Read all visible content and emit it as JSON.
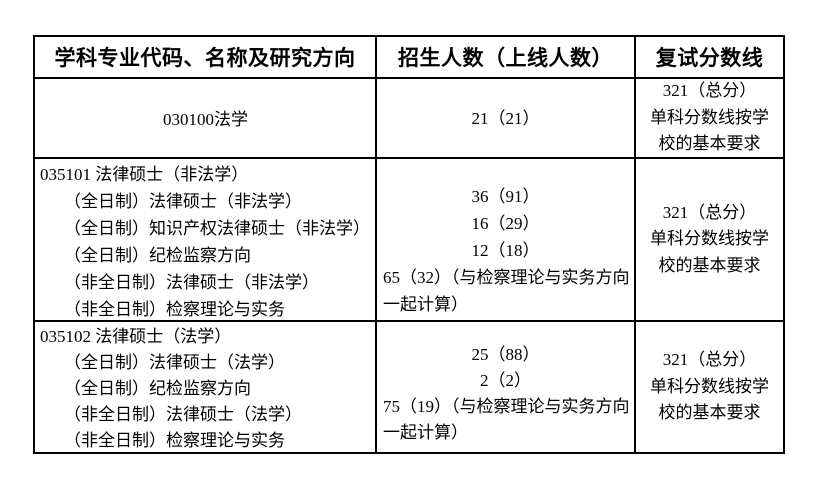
{
  "table": {
    "border_color": "#000000",
    "text_color": "#000000",
    "background_color": "#ffffff",
    "header": {
      "col_program": "学科专业代码、名称及研究方向",
      "col_enrollment": "招生人数（上线人数）",
      "col_score": "复试分数线"
    },
    "rows": [
      {
        "program_title": "030100法学",
        "program_subs": [],
        "enrollment_center": [
          "21（21）"
        ],
        "enrollment_long": "",
        "score_lines": [
          "321（总分）",
          "单科分数线按学",
          "校的基本要求"
        ]
      },
      {
        "program_title": "035101 法律硕士（非法学）",
        "program_subs": [
          "（全日制）法律硕士（非法学）",
          "（全日制）知识产权法律硕士（非法学）",
          "（全日制）纪检监察方向",
          "（非全日制）法律硕士（非法学）",
          "（非全日制）检察理论与实务"
        ],
        "enrollment_center": [
          "36（91）",
          "16（29）",
          "12（18）"
        ],
        "enrollment_long": "65（32）（与检察理论与实务方向一起计算）",
        "score_lines": [
          "321（总分）",
          "单科分数线按学",
          "校的基本要求"
        ]
      },
      {
        "program_title": "035102 法律硕士（法学）",
        "program_subs": [
          "（全日制）法律硕士（法学）",
          "（全日制）纪检监察方向",
          "（非全日制）法律硕士（法学）",
          "（非全日制）检察理论与实务"
        ],
        "enrollment_center": [
          "25（88）",
          "2（2）"
        ],
        "enrollment_long": "75（19）（与检察理论与实务方向一起计算）",
        "score_lines": [
          "321（总分）",
          "单科分数线按学",
          "校的基本要求"
        ]
      }
    ]
  }
}
